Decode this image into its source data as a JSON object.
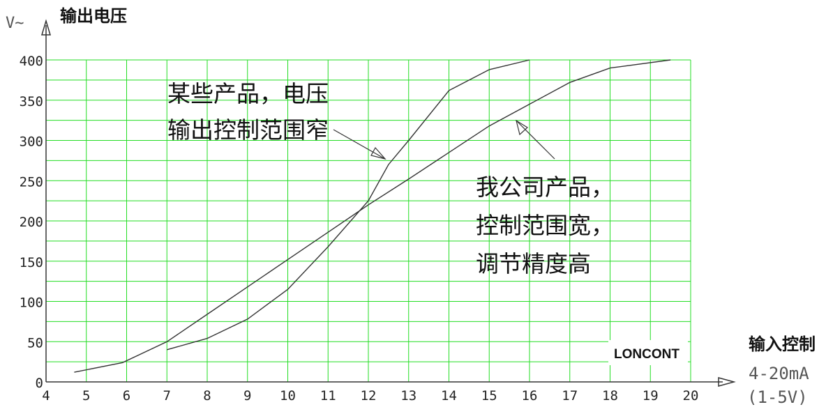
{
  "chart_data": {
    "type": "line",
    "y_unit": "V~",
    "ylabel": "输出电压",
    "xlabel": "输入控制",
    "xlabel_line2": "4-20mA",
    "xlabel_line3": "(1-5V)",
    "xlim": [
      4,
      20
    ],
    "ylim": [
      0,
      400
    ],
    "xticks": [
      4,
      5,
      6,
      7,
      8,
      9,
      10,
      11,
      12,
      13,
      14,
      15,
      16,
      17,
      18,
      19,
      20
    ],
    "yticks": [
      0,
      50,
      100,
      150,
      200,
      250,
      300,
      350,
      400
    ],
    "grid": true,
    "series": [
      {
        "points": [
          [
            4.7,
            12
          ],
          [
            5.9,
            24
          ],
          [
            7,
            50
          ],
          [
            8,
            84
          ],
          [
            9,
            118
          ],
          [
            10,
            152
          ],
          [
            11,
            186
          ],
          [
            12,
            220
          ],
          [
            13,
            252
          ],
          [
            14,
            285
          ],
          [
            15,
            318
          ],
          [
            16,
            345
          ],
          [
            17,
            372
          ],
          [
            18,
            390
          ],
          [
            19.5,
            400
          ]
        ]
      },
      {
        "points": [
          [
            7,
            40
          ],
          [
            8,
            54
          ],
          [
            9,
            78
          ],
          [
            10,
            115
          ],
          [
            11,
            168
          ],
          [
            12,
            225
          ],
          [
            12.5,
            270
          ],
          [
            13,
            300
          ],
          [
            14,
            362
          ],
          [
            15,
            388
          ],
          [
            16,
            400
          ]
        ]
      }
    ],
    "annotations": [
      {
        "lines": [
          "某些产品，电压",
          "输出控制范围窄"
        ]
      },
      {
        "lines": [
          "我公司产品，",
          "控制范围宽，",
          "调节精度高"
        ]
      }
    ],
    "watermark": "LONCONT"
  },
  "colors": {
    "grid": "#22dd22",
    "line": "#333333",
    "axis": "#333333"
  }
}
